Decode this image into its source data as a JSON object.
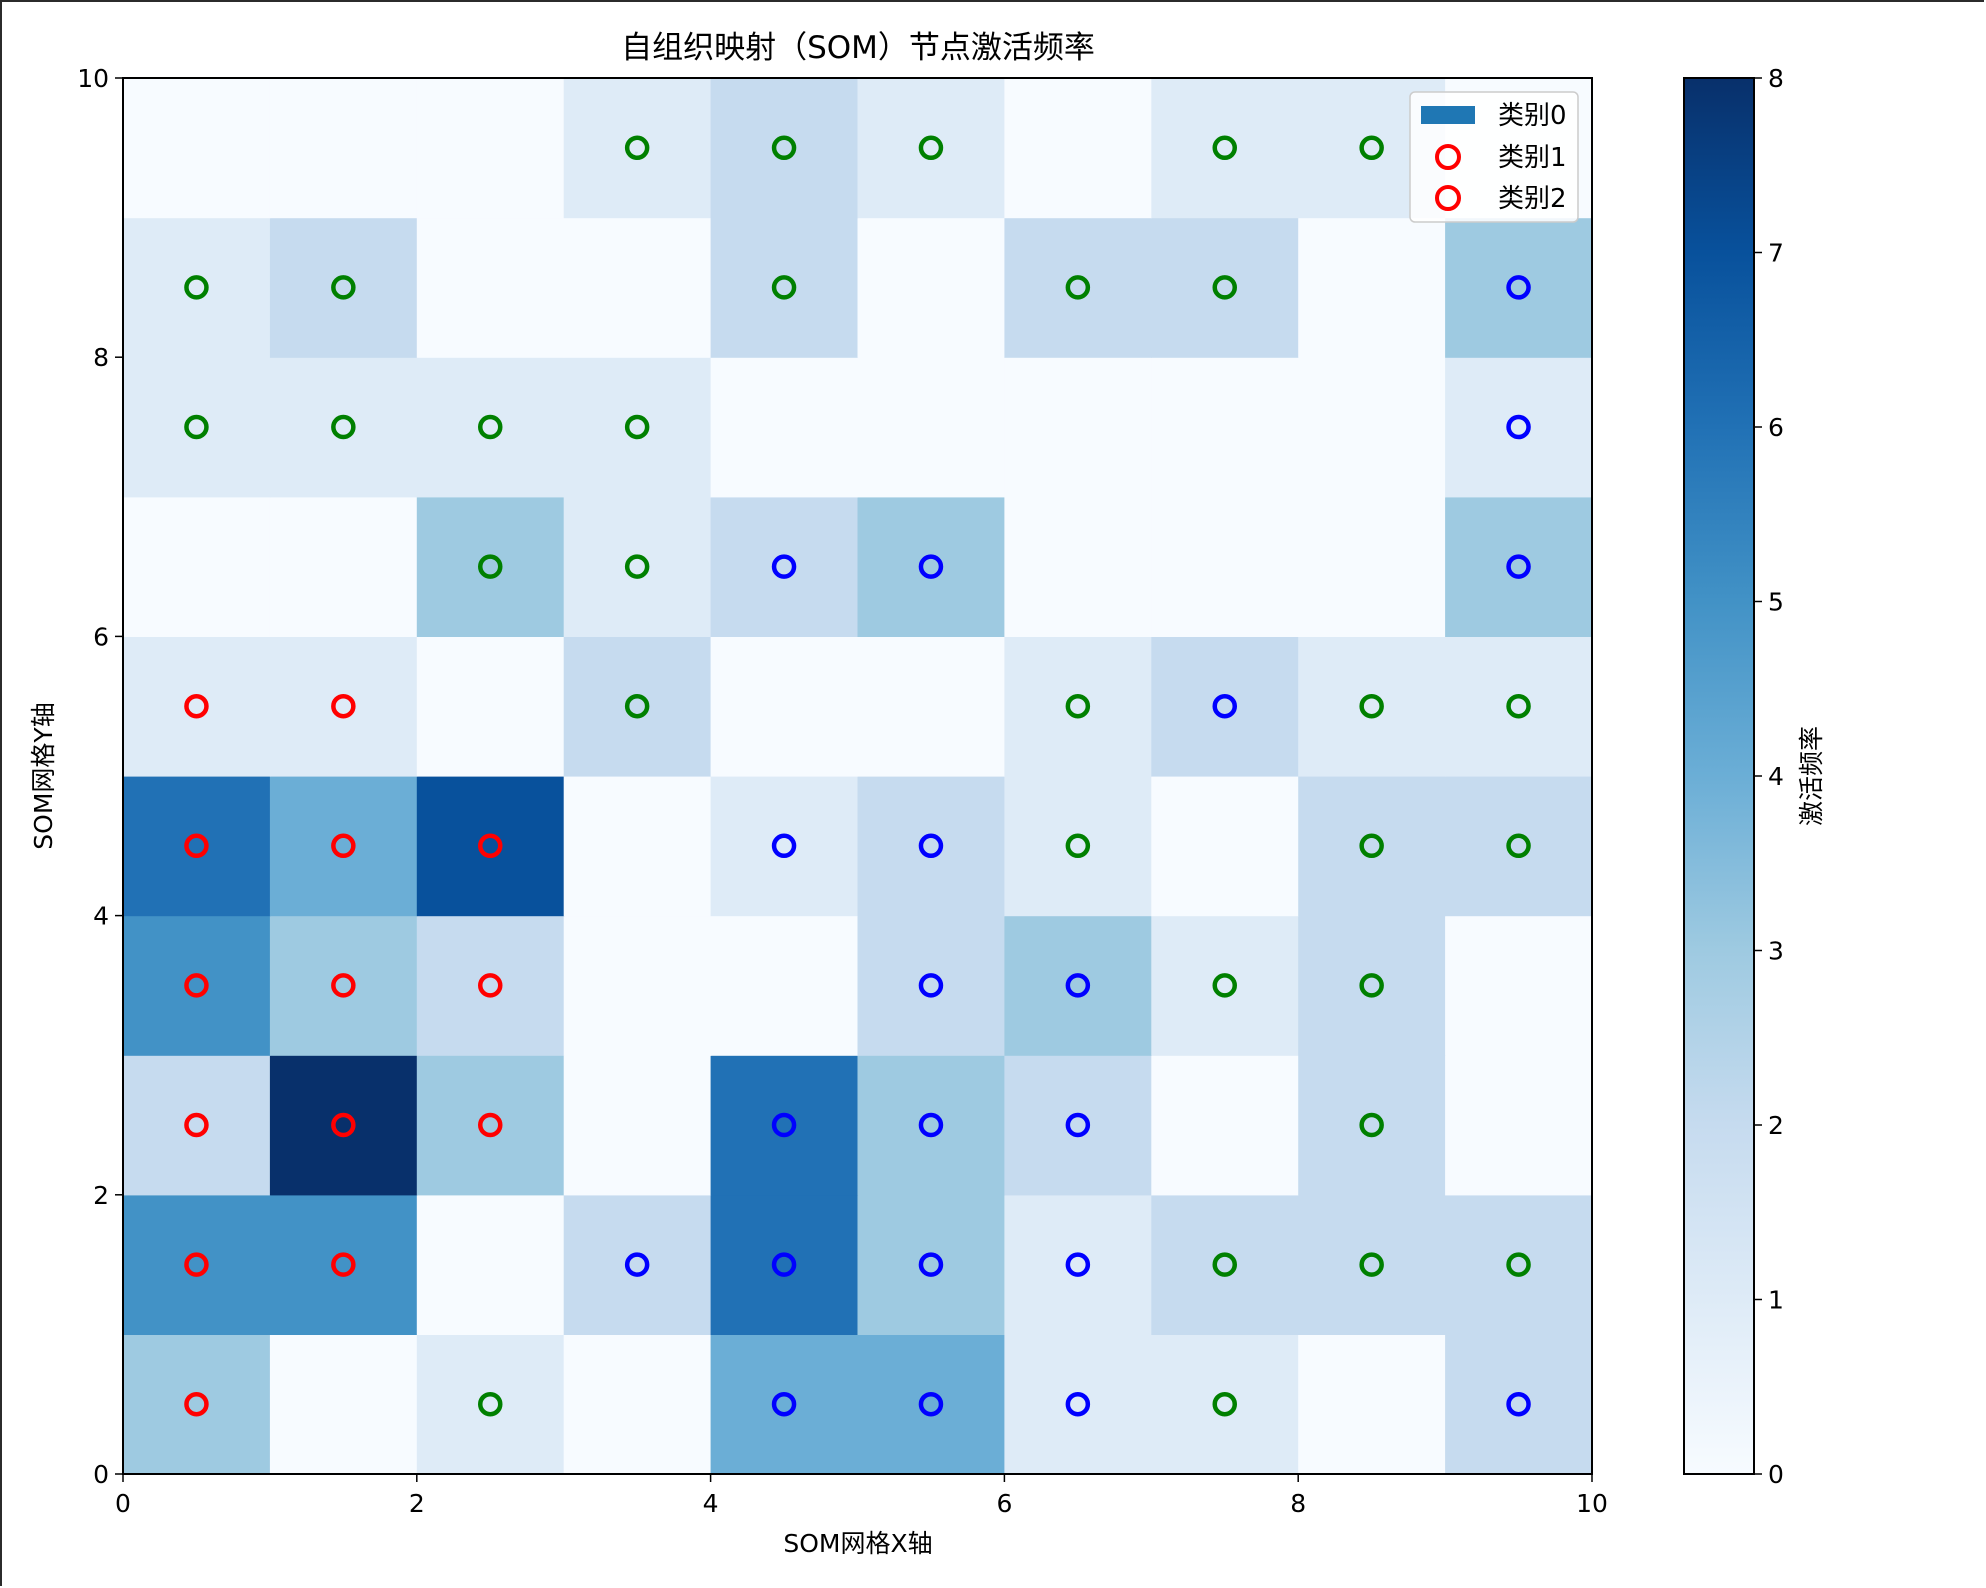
{
  "chart_data": {
    "type": "heatmap",
    "title": "自组织映射（SOM）节点激活频率",
    "xlabel": "SOM网格X轴",
    "ylabel": "SOM网格Y轴",
    "xlim": [
      0,
      10
    ],
    "ylim": [
      0,
      10
    ],
    "xticks": [
      "0",
      "2",
      "4",
      "6",
      "8",
      "10"
    ],
    "yticks": [
      "0",
      "2",
      "4",
      "6",
      "8",
      "10"
    ],
    "colorbar": {
      "label": "激活频率",
      "min": 0,
      "max": 8,
      "ticks": [
        "0",
        "1",
        "2",
        "3",
        "4",
        "5",
        "6",
        "7",
        "8"
      ],
      "colormap": "Blues"
    },
    "activation_grid_rows_bottom_to_top": [
      [
        3,
        0,
        1,
        0,
        4,
        4,
        1,
        1,
        0,
        2
      ],
      [
        5,
        5,
        0,
        2,
        6,
        3,
        1,
        2,
        2,
        2
      ],
      [
        2,
        8,
        3,
        0,
        6,
        3,
        2,
        0,
        2,
        0
      ],
      [
        5,
        3,
        2,
        0,
        0,
        2,
        3,
        1,
        2,
        0
      ],
      [
        6,
        4,
        7,
        0,
        1,
        2,
        1,
        0,
        2,
        2
      ],
      [
        1,
        1,
        0,
        2,
        0,
        0,
        1,
        2,
        1,
        1
      ],
      [
        0,
        0,
        3,
        1,
        2,
        3,
        0,
        0,
        0,
        3
      ],
      [
        1,
        1,
        1,
        1,
        0,
        0,
        0,
        0,
        0,
        1
      ],
      [
        1,
        2,
        0,
        0,
        2,
        0,
        2,
        2,
        0,
        3
      ],
      [
        0,
        0,
        0,
        1,
        2,
        1,
        0,
        1,
        1,
        0
      ]
    ],
    "legend": {
      "placement": "top-right",
      "entries": [
        {
          "label": "类别0",
          "color": "#1f77b4",
          "marker": "patch"
        },
        {
          "label": "类别1",
          "color": "#ff0000",
          "marker": "circle"
        },
        {
          "label": "类别2",
          "color": "#ff0000",
          "marker": "circle"
        }
      ]
    },
    "marker_colors": {
      "red": "#ff0000",
      "green": "#008000",
      "blue": "#0000ff"
    },
    "markers": [
      {
        "x": 0.5,
        "y": 0.5,
        "color": "red"
      },
      {
        "x": 2.5,
        "y": 0.5,
        "color": "green"
      },
      {
        "x": 4.5,
        "y": 0.5,
        "color": "blue"
      },
      {
        "x": 5.5,
        "y": 0.5,
        "color": "blue"
      },
      {
        "x": 6.5,
        "y": 0.5,
        "color": "blue"
      },
      {
        "x": 7.5,
        "y": 0.5,
        "color": "green"
      },
      {
        "x": 9.5,
        "y": 0.5,
        "color": "blue"
      },
      {
        "x": 0.5,
        "y": 1.5,
        "color": "red"
      },
      {
        "x": 1.5,
        "y": 1.5,
        "color": "red"
      },
      {
        "x": 3.5,
        "y": 1.5,
        "color": "blue"
      },
      {
        "x": 4.5,
        "y": 1.5,
        "color": "blue"
      },
      {
        "x": 5.5,
        "y": 1.5,
        "color": "blue"
      },
      {
        "x": 6.5,
        "y": 1.5,
        "color": "blue"
      },
      {
        "x": 7.5,
        "y": 1.5,
        "color": "green"
      },
      {
        "x": 8.5,
        "y": 1.5,
        "color": "green"
      },
      {
        "x": 9.5,
        "y": 1.5,
        "color": "green"
      },
      {
        "x": 0.5,
        "y": 2.5,
        "color": "red"
      },
      {
        "x": 1.5,
        "y": 2.5,
        "color": "red"
      },
      {
        "x": 2.5,
        "y": 2.5,
        "color": "red"
      },
      {
        "x": 4.5,
        "y": 2.5,
        "color": "blue"
      },
      {
        "x": 5.5,
        "y": 2.5,
        "color": "blue"
      },
      {
        "x": 6.5,
        "y": 2.5,
        "color": "blue"
      },
      {
        "x": 8.5,
        "y": 2.5,
        "color": "green"
      },
      {
        "x": 0.5,
        "y": 3.5,
        "color": "red"
      },
      {
        "x": 1.5,
        "y": 3.5,
        "color": "red"
      },
      {
        "x": 2.5,
        "y": 3.5,
        "color": "red"
      },
      {
        "x": 5.5,
        "y": 3.5,
        "color": "blue"
      },
      {
        "x": 6.5,
        "y": 3.5,
        "color": "blue"
      },
      {
        "x": 7.5,
        "y": 3.5,
        "color": "green"
      },
      {
        "x": 8.5,
        "y": 3.5,
        "color": "green"
      },
      {
        "x": 0.5,
        "y": 4.5,
        "color": "red"
      },
      {
        "x": 1.5,
        "y": 4.5,
        "color": "red"
      },
      {
        "x": 2.5,
        "y": 4.5,
        "color": "red"
      },
      {
        "x": 4.5,
        "y": 4.5,
        "color": "blue"
      },
      {
        "x": 5.5,
        "y": 4.5,
        "color": "blue"
      },
      {
        "x": 6.5,
        "y": 4.5,
        "color": "green"
      },
      {
        "x": 8.5,
        "y": 4.5,
        "color": "green"
      },
      {
        "x": 9.5,
        "y": 4.5,
        "color": "green"
      },
      {
        "x": 0.5,
        "y": 5.5,
        "color": "red"
      },
      {
        "x": 1.5,
        "y": 5.5,
        "color": "red"
      },
      {
        "x": 3.5,
        "y": 5.5,
        "color": "green"
      },
      {
        "x": 6.5,
        "y": 5.5,
        "color": "green"
      },
      {
        "x": 7.5,
        "y": 5.5,
        "color": "blue"
      },
      {
        "x": 8.5,
        "y": 5.5,
        "color": "green"
      },
      {
        "x": 9.5,
        "y": 5.5,
        "color": "green"
      },
      {
        "x": 2.5,
        "y": 6.5,
        "color": "green"
      },
      {
        "x": 3.5,
        "y": 6.5,
        "color": "green"
      },
      {
        "x": 4.5,
        "y": 6.5,
        "color": "blue"
      },
      {
        "x": 5.5,
        "y": 6.5,
        "color": "blue"
      },
      {
        "x": 9.5,
        "y": 6.5,
        "color": "blue"
      },
      {
        "x": 0.5,
        "y": 7.5,
        "color": "green"
      },
      {
        "x": 1.5,
        "y": 7.5,
        "color": "green"
      },
      {
        "x": 2.5,
        "y": 7.5,
        "color": "green"
      },
      {
        "x": 3.5,
        "y": 7.5,
        "color": "green"
      },
      {
        "x": 9.5,
        "y": 7.5,
        "color": "blue"
      },
      {
        "x": 0.5,
        "y": 8.5,
        "color": "green"
      },
      {
        "x": 1.5,
        "y": 8.5,
        "color": "green"
      },
      {
        "x": 4.5,
        "y": 8.5,
        "color": "green"
      },
      {
        "x": 6.5,
        "y": 8.5,
        "color": "green"
      },
      {
        "x": 7.5,
        "y": 8.5,
        "color": "green"
      },
      {
        "x": 9.5,
        "y": 8.5,
        "color": "blue"
      },
      {
        "x": 3.5,
        "y": 9.5,
        "color": "green"
      },
      {
        "x": 4.5,
        "y": 9.5,
        "color": "green"
      },
      {
        "x": 5.5,
        "y": 9.5,
        "color": "green"
      },
      {
        "x": 7.5,
        "y": 9.5,
        "color": "green"
      },
      {
        "x": 8.5,
        "y": 9.5,
        "color": "green"
      }
    ]
  }
}
